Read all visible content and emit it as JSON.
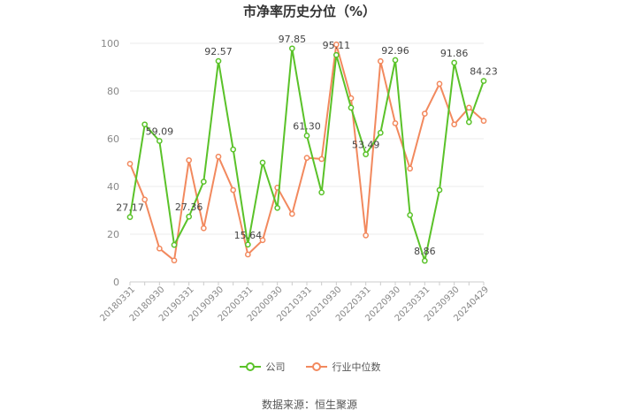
{
  "chart_data": {
    "type": "line",
    "title": "市净率历史分位（%）",
    "xlabel": "",
    "ylabel": "",
    "ylim": [
      0,
      100
    ],
    "yticks": [
      0,
      20,
      40,
      60,
      80,
      100
    ],
    "grid": true,
    "legend_position": "bottom",
    "x": [
      "20180331",
      "20180630",
      "20180930",
      "20181231",
      "20190331",
      "20190630",
      "20190930",
      "20191231",
      "20200331",
      "20200630",
      "20200930",
      "20201231",
      "20210331",
      "20210630",
      "20210930",
      "20211231",
      "20220331",
      "20220630",
      "20220930",
      "20221231",
      "20230331",
      "20230630",
      "20230930",
      "20231231",
      "20240429"
    ],
    "x_tick_labels": [
      "20180331",
      "20180930",
      "20190331",
      "20190930",
      "20200331",
      "20200930",
      "20210331",
      "20210930",
      "20220331",
      "20220930",
      "20230331",
      "20230930",
      "20240429"
    ],
    "series": [
      {
        "name": "公司",
        "color": "#5ac229",
        "values": [
          27.17,
          66,
          59.09,
          15.5,
          27.36,
          42,
          92.57,
          55.5,
          15.64,
          50,
          31,
          97.85,
          61.3,
          37.5,
          95.11,
          73,
          53.49,
          62.5,
          92.96,
          28,
          8.86,
          38.5,
          91.86,
          67,
          84.23
        ],
        "labels": [
          "27.17",
          "",
          "59.09",
          "",
          "27.36",
          "",
          "92.57",
          "",
          "15.64",
          "",
          "",
          "97.85",
          "61.30",
          "",
          "95.11",
          "",
          "53.49",
          "",
          "92.96",
          "",
          "8.86",
          "",
          "91.86",
          "",
          "84.23"
        ]
      },
      {
        "name": "行业中位数",
        "color": "#f2895e",
        "values": [
          49.5,
          34.5,
          14,
          9,
          51,
          22.5,
          52.5,
          38.5,
          11.5,
          17.5,
          39.5,
          28.5,
          52,
          51.5,
          99.5,
          77,
          19.5,
          92.5,
          66.5,
          47.5,
          70.5,
          83,
          66,
          73,
          67.5
        ]
      }
    ]
  },
  "legend": {
    "company": "公司",
    "industry": "行业中位数"
  },
  "source": "数据来源：恒生聚源"
}
